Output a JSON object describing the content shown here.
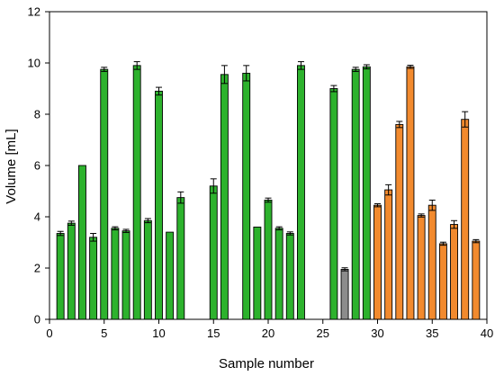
{
  "chart_data": {
    "type": "bar",
    "title": "",
    "xlabel": "Sample number",
    "ylabel": "Volume [mL]",
    "xlim": [
      0,
      40
    ],
    "ylim": [
      0,
      12
    ],
    "x_ticks": [
      0,
      5,
      10,
      15,
      20,
      25,
      30,
      35,
      40
    ],
    "y_ticks": [
      0,
      2,
      4,
      6,
      8,
      10,
      12
    ],
    "grid": false,
    "legend": "none",
    "bars": [
      {
        "x": 1,
        "value": 3.35,
        "error": 0.08,
        "color": "#2db22d"
      },
      {
        "x": 2,
        "value": 3.75,
        "error": 0.08,
        "color": "#2db22d"
      },
      {
        "x": 3,
        "value": 6.0,
        "error": 0.0,
        "color": "#2db22d"
      },
      {
        "x": 4,
        "value": 3.2,
        "error": 0.15,
        "color": "#2db22d"
      },
      {
        "x": 5,
        "value": 9.75,
        "error": 0.08,
        "color": "#2db22d"
      },
      {
        "x": 6,
        "value": 3.55,
        "error": 0.06,
        "color": "#2db22d"
      },
      {
        "x": 7,
        "value": 3.45,
        "error": 0.06,
        "color": "#2db22d"
      },
      {
        "x": 8,
        "value": 9.9,
        "error": 0.15,
        "color": "#2db22d"
      },
      {
        "x": 9,
        "value": 3.85,
        "error": 0.08,
        "color": "#2db22d"
      },
      {
        "x": 10,
        "value": 8.9,
        "error": 0.15,
        "color": "#2db22d"
      },
      {
        "x": 11,
        "value": 3.4,
        "error": 0.0,
        "color": "#2db22d"
      },
      {
        "x": 12,
        "value": 4.75,
        "error": 0.22,
        "color": "#2db22d"
      },
      {
        "x": 15,
        "value": 5.2,
        "error": 0.28,
        "color": "#2db22d"
      },
      {
        "x": 16,
        "value": 9.55,
        "error": 0.35,
        "color": "#2db22d"
      },
      {
        "x": 18,
        "value": 9.6,
        "error": 0.3,
        "color": "#2db22d"
      },
      {
        "x": 19,
        "value": 3.6,
        "error": 0.0,
        "color": "#2db22d"
      },
      {
        "x": 20,
        "value": 4.65,
        "error": 0.08,
        "color": "#2db22d"
      },
      {
        "x": 21,
        "value": 3.55,
        "error": 0.06,
        "color": "#2db22d"
      },
      {
        "x": 22,
        "value": 3.35,
        "error": 0.06,
        "color": "#2db22d"
      },
      {
        "x": 23,
        "value": 9.9,
        "error": 0.15,
        "color": "#2db22d"
      },
      {
        "x": 26,
        "value": 9.0,
        "error": 0.12,
        "color": "#2db22d"
      },
      {
        "x": 27,
        "value": 1.95,
        "error": 0.06,
        "color": "#8c8c8c"
      },
      {
        "x": 28,
        "value": 9.75,
        "error": 0.08,
        "color": "#2db22d"
      },
      {
        "x": 29,
        "value": 9.85,
        "error": 0.08,
        "color": "#2db22d"
      },
      {
        "x": 30,
        "value": 4.45,
        "error": 0.06,
        "color": "#f28a2e"
      },
      {
        "x": 31,
        "value": 5.05,
        "error": 0.2,
        "color": "#f28a2e"
      },
      {
        "x": 32,
        "value": 7.6,
        "error": 0.12,
        "color": "#f28a2e"
      },
      {
        "x": 33,
        "value": 9.85,
        "error": 0.06,
        "color": "#f28a2e"
      },
      {
        "x": 34,
        "value": 4.05,
        "error": 0.06,
        "color": "#f28a2e"
      },
      {
        "x": 35,
        "value": 4.45,
        "error": 0.2,
        "color": "#f28a2e"
      },
      {
        "x": 36,
        "value": 2.95,
        "error": 0.06,
        "color": "#f28a2e"
      },
      {
        "x": 37,
        "value": 3.7,
        "error": 0.15,
        "color": "#f28a2e"
      },
      {
        "x": 38,
        "value": 7.8,
        "error": 0.3,
        "color": "#f28a2e"
      },
      {
        "x": 39,
        "value": 3.05,
        "error": 0.06,
        "color": "#f28a2e"
      }
    ]
  }
}
